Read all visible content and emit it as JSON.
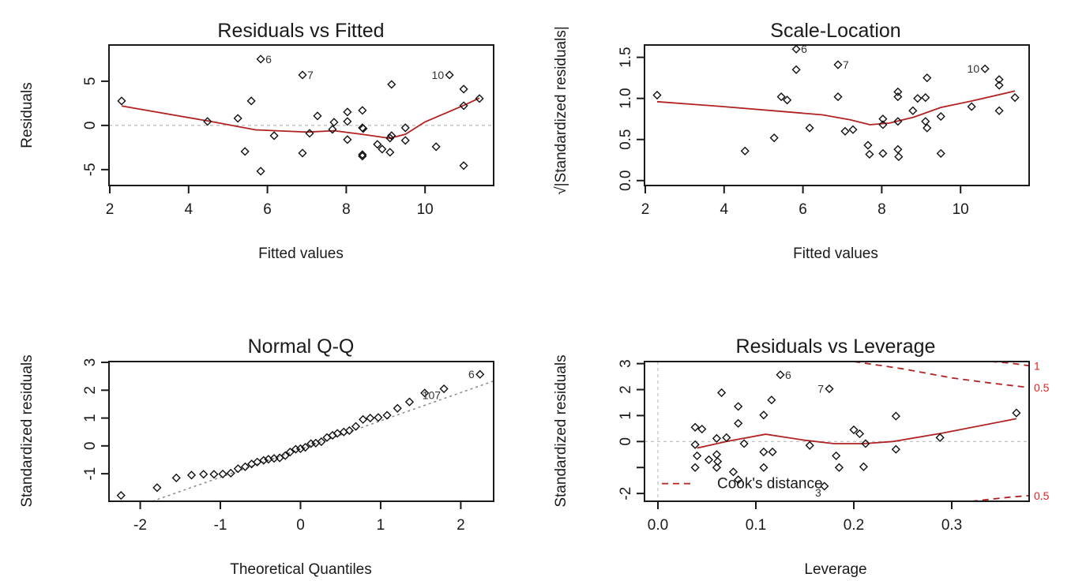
{
  "chart_data": [
    {
      "type": "scatter",
      "title": "Residuals vs Fitted",
      "xlabel": "Fitted values",
      "ylabel": "Residuals",
      "xlim": [
        1.98,
        11.74
      ],
      "ylim": [
        -6.8,
        9.1
      ],
      "xticks": [
        2,
        4,
        6,
        8,
        10
      ],
      "yticks": [
        -5,
        0,
        5
      ],
      "xtick_labels": [
        "2",
        "4",
        "6",
        "8",
        "10"
      ],
      "ytick_labels": [
        "-5",
        "0",
        "5"
      ],
      "reference_line": {
        "type": "horizontal",
        "y": 0,
        "style": "dotted"
      },
      "points": [
        [
          2.3,
          2.77
        ],
        [
          4.48,
          0.45
        ],
        [
          5.25,
          0.8
        ],
        [
          5.59,
          2.77
        ],
        [
          5.43,
          -2.95
        ],
        [
          5.83,
          7.5
        ],
        [
          5.83,
          -5.18
        ],
        [
          6.17,
          -1.16
        ],
        [
          6.89,
          5.71
        ],
        [
          6.89,
          -3.13
        ],
        [
          7.07,
          -0.89
        ],
        [
          7.27,
          1.07
        ],
        [
          7.65,
          -0.45
        ],
        [
          7.69,
          0.36
        ],
        [
          8.03,
          1.52
        ],
        [
          8.03,
          0.45
        ],
        [
          8.03,
          -1.61
        ],
        [
          8.41,
          1.7
        ],
        [
          8.41,
          -0.27
        ],
        [
          8.43,
          -0.36
        ],
        [
          8.41,
          -3.3
        ],
        [
          8.41,
          -3.48
        ],
        [
          8.79,
          -2.14
        ],
        [
          8.91,
          -2.68
        ],
        [
          9.11,
          -3.04
        ],
        [
          9.11,
          -1.43
        ],
        [
          9.15,
          -1.16
        ],
        [
          9.15,
          4.64
        ],
        [
          9.5,
          -0.27
        ],
        [
          9.5,
          -1.7
        ],
        [
          10.28,
          -2.41
        ],
        [
          10.62,
          5.71
        ],
        [
          10.98,
          4.11
        ],
        [
          10.98,
          2.23
        ],
        [
          10.98,
          -4.55
        ],
        [
          11.38,
          3.04
        ]
      ],
      "point_labels": [
        {
          "point": 5,
          "text": "6",
          "side": "right"
        },
        {
          "point": 8,
          "text": "7",
          "side": "right"
        },
        {
          "point": 31,
          "text": "10",
          "side": "left"
        }
      ],
      "smooth": [
        [
          2.3,
          2.2
        ],
        [
          4.5,
          0.5
        ],
        [
          5.7,
          -0.5
        ],
        [
          7.0,
          -0.75
        ],
        [
          7.7,
          -0.6
        ],
        [
          8.4,
          -1.0
        ],
        [
          9.1,
          -1.45
        ],
        [
          9.5,
          -1.0
        ],
        [
          10.0,
          0.4
        ],
        [
          11.0,
          2.3
        ],
        [
          11.38,
          3.1
        ]
      ]
    },
    {
      "type": "scatter",
      "title": "Scale-Location",
      "xlabel": "Fitted values",
      "ylabel": "√|Standardized residuals|",
      "xlim": [
        1.98,
        11.74
      ],
      "ylim": [
        -0.06,
        1.65
      ],
      "xticks": [
        2,
        4,
        6,
        8,
        10
      ],
      "yticks": [
        0.0,
        0.5,
        1.0,
        1.5
      ],
      "xtick_labels": [
        "2",
        "4",
        "6",
        "8",
        "10"
      ],
      "ytick_labels": [
        "0.0",
        "0.5",
        "1.0",
        "1.5"
      ],
      "points": [
        [
          2.3,
          1.04
        ],
        [
          4.53,
          0.36
        ],
        [
          5.27,
          0.52
        ],
        [
          5.45,
          1.02
        ],
        [
          5.6,
          0.98
        ],
        [
          5.83,
          1.6
        ],
        [
          5.83,
          1.35
        ],
        [
          6.17,
          0.64
        ],
        [
          6.89,
          1.41
        ],
        [
          6.89,
          1.02
        ],
        [
          7.07,
          0.6
        ],
        [
          7.27,
          0.62
        ],
        [
          7.65,
          0.43
        ],
        [
          7.69,
          0.32
        ],
        [
          8.03,
          0.75
        ],
        [
          8.03,
          0.68
        ],
        [
          8.03,
          0.33
        ],
        [
          8.41,
          1.08
        ],
        [
          8.41,
          1.02
        ],
        [
          8.41,
          0.72
        ],
        [
          8.41,
          0.38
        ],
        [
          8.43,
          0.29
        ],
        [
          8.79,
          0.85
        ],
        [
          8.91,
          1.0
        ],
        [
          9.11,
          1.01
        ],
        [
          9.11,
          0.72
        ],
        [
          9.15,
          0.64
        ],
        [
          9.15,
          1.25
        ],
        [
          9.5,
          0.78
        ],
        [
          9.5,
          0.33
        ],
        [
          10.28,
          0.9
        ],
        [
          10.62,
          1.36
        ],
        [
          10.98,
          1.23
        ],
        [
          10.98,
          1.16
        ],
        [
          10.98,
          0.85
        ],
        [
          11.38,
          1.01
        ]
      ],
      "point_labels": [
        {
          "point": 5,
          "text": "6",
          "side": "right"
        },
        {
          "point": 8,
          "text": "7",
          "side": "right"
        },
        {
          "point": 31,
          "text": "10",
          "side": "left"
        }
      ],
      "smooth": [
        [
          2.3,
          0.96
        ],
        [
          4.0,
          0.9
        ],
        [
          5.5,
          0.84
        ],
        [
          6.5,
          0.8
        ],
        [
          7.2,
          0.74
        ],
        [
          7.7,
          0.68
        ],
        [
          8.2,
          0.7
        ],
        [
          8.8,
          0.77
        ],
        [
          9.5,
          0.89
        ],
        [
          10.3,
          0.97
        ],
        [
          11.38,
          1.09
        ]
      ]
    },
    {
      "type": "scatter",
      "title": "Normal Q-Q",
      "xlabel": "Theoretical Quantiles",
      "ylabel": "Standardized residuals",
      "xlim": [
        -2.39,
        2.41
      ],
      "ylim": [
        -1.99,
        3.03
      ],
      "xticks": [
        -2,
        -1,
        0,
        1,
        2
      ],
      "yticks": [
        -1,
        0,
        1,
        2,
        3
      ],
      "xtick_labels": [
        "-2",
        "-1",
        "0",
        "1",
        "2"
      ],
      "ytick_labels": [
        "-1",
        "0",
        "1",
        "2",
        "3"
      ],
      "points": [
        [
          -2.24,
          -1.78
        ],
        [
          -1.79,
          -1.5
        ],
        [
          -1.55,
          -1.15
        ],
        [
          -1.36,
          -1.05
        ],
        [
          -1.21,
          -1.02
        ],
        [
          -1.08,
          -1.02
        ],
        [
          -0.97,
          -1.01
        ],
        [
          -0.87,
          -0.98
        ],
        [
          -0.78,
          -0.82
        ],
        [
          -0.69,
          -0.75
        ],
        [
          -0.61,
          -0.65
        ],
        [
          -0.54,
          -0.58
        ],
        [
          -0.46,
          -0.52
        ],
        [
          -0.4,
          -0.48
        ],
        [
          -0.33,
          -0.45
        ],
        [
          -0.26,
          -0.43
        ],
        [
          -0.19,
          -0.35
        ],
        [
          -0.13,
          -0.22
        ],
        [
          -0.06,
          -0.12
        ],
        [
          0.0,
          -0.1
        ],
        [
          0.06,
          -0.05
        ],
        [
          0.13,
          0.08
        ],
        [
          0.19,
          0.1
        ],
        [
          0.26,
          0.15
        ],
        [
          0.33,
          0.3
        ],
        [
          0.4,
          0.38
        ],
        [
          0.46,
          0.45
        ],
        [
          0.54,
          0.5
        ],
        [
          0.61,
          0.55
        ],
        [
          0.69,
          0.7
        ],
        [
          0.78,
          0.95
        ],
        [
          0.87,
          1.0
        ],
        [
          0.97,
          1.02
        ],
        [
          1.08,
          1.1
        ],
        [
          1.21,
          1.35
        ],
        [
          1.36,
          1.58
        ],
        [
          1.55,
          1.9
        ],
        [
          1.79,
          2.05
        ],
        [
          2.24,
          2.57
        ]
      ],
      "point_labels": [
        {
          "point": 38,
          "text": "6",
          "side": "left"
        },
        {
          "point": 37,
          "text": "107",
          "side": "below-left"
        }
      ],
      "reference_line": {
        "type": "qq",
        "from": [
          -1.85,
          -1.99
        ],
        "to": [
          2.41,
          2.33
        ],
        "style": "dotted"
      }
    },
    {
      "type": "scatter",
      "title": "Residuals vs Leverage",
      "xlabel": "Leverage",
      "ylabel": "Standardized residuals",
      "xlim": [
        -0.0137,
        0.379
      ],
      "ylim": [
        -2.3,
        3.08
      ],
      "xticks": [
        0.0,
        0.1,
        0.2,
        0.3
      ],
      "yticks": [
        -2,
        -1,
        0,
        1,
        2,
        3
      ],
      "xtick_labels": [
        "0.0",
        "0.1",
        "0.2",
        "0.3"
      ],
      "ytick_labels": [
        "-2",
        "",
        "0",
        "1",
        "2",
        "3"
      ],
      "points": [
        [
          0.038,
          0.55
        ],
        [
          0.045,
          0.48
        ],
        [
          0.038,
          -0.12
        ],
        [
          0.04,
          -0.55
        ],
        [
          0.038,
          -1.0
        ],
        [
          0.052,
          -0.7
        ],
        [
          0.06,
          -0.5
        ],
        [
          0.061,
          -0.77
        ],
        [
          0.06,
          -1.0
        ],
        [
          0.06,
          0.12
        ],
        [
          0.065,
          1.88
        ],
        [
          0.07,
          0.15
        ],
        [
          0.077,
          -1.17
        ],
        [
          0.082,
          1.35
        ],
        [
          0.082,
          0.7
        ],
        [
          0.082,
          -1.47
        ],
        [
          0.088,
          -0.08
        ],
        [
          0.108,
          1.02
        ],
        [
          0.108,
          -0.4
        ],
        [
          0.108,
          -1.0
        ],
        [
          0.116,
          1.6
        ],
        [
          0.117,
          -0.4
        ],
        [
          0.125,
          2.57
        ],
        [
          0.155,
          -0.15
        ],
        [
          0.17,
          -1.72
        ],
        [
          0.175,
          2.03
        ],
        [
          0.182,
          -0.55
        ],
        [
          0.185,
          -1.0
        ],
        [
          0.2,
          0.45
        ],
        [
          0.206,
          0.3
        ],
        [
          0.21,
          -0.97
        ],
        [
          0.212,
          -0.08
        ],
        [
          0.243,
          0.98
        ],
        [
          0.243,
          -0.3
        ],
        [
          0.288,
          0.15
        ],
        [
          0.366,
          1.1
        ]
      ],
      "point_labels": [
        {
          "point": 22,
          "text": "6",
          "side": "right"
        },
        {
          "point": 25,
          "text": "7",
          "side": "left"
        },
        {
          "point": 24,
          "text": "3",
          "side": "below-left"
        }
      ],
      "reference_lines": [
        {
          "type": "horizontal",
          "y": 0,
          "style": "dotted"
        },
        {
          "type": "vertical",
          "x": 0,
          "style": "dotted"
        }
      ],
      "smooth": [
        [
          0.04,
          -0.25
        ],
        [
          0.07,
          0.0
        ],
        [
          0.11,
          0.28
        ],
        [
          0.15,
          0.05
        ],
        [
          0.18,
          -0.08
        ],
        [
          0.21,
          -0.08
        ],
        [
          0.24,
          0.0
        ],
        [
          0.29,
          0.32
        ],
        [
          0.366,
          0.88
        ]
      ],
      "cooks_contours": [
        {
          "level": "0.5",
          "points": [
            [
              0.2,
              3.08
            ],
            [
              0.25,
              2.8
            ],
            [
              0.3,
              2.45
            ],
            [
              0.34,
              2.25
            ],
            [
              0.379,
              2.08
            ]
          ]
        },
        {
          "level": "1",
          "points": [
            [
              0.34,
              3.08
            ],
            [
              0.36,
              3.02
            ],
            [
              0.379,
              2.92
            ]
          ]
        },
        {
          "level": "0.5",
          "points": [
            [
              0.32,
              -2.3
            ],
            [
              0.34,
              -2.22
            ],
            [
              0.36,
              -2.14
            ],
            [
              0.379,
              -2.08
            ]
          ]
        }
      ],
      "contour_labels": [
        {
          "text": "1",
          "y": 2.92
        },
        {
          "text": "0.5",
          "y": 2.08
        },
        {
          "text": "0.5",
          "y": -2.08
        }
      ],
      "legend": {
        "entries": [
          "Cook's distance"
        ],
        "placement": "bottom-left"
      }
    }
  ]
}
